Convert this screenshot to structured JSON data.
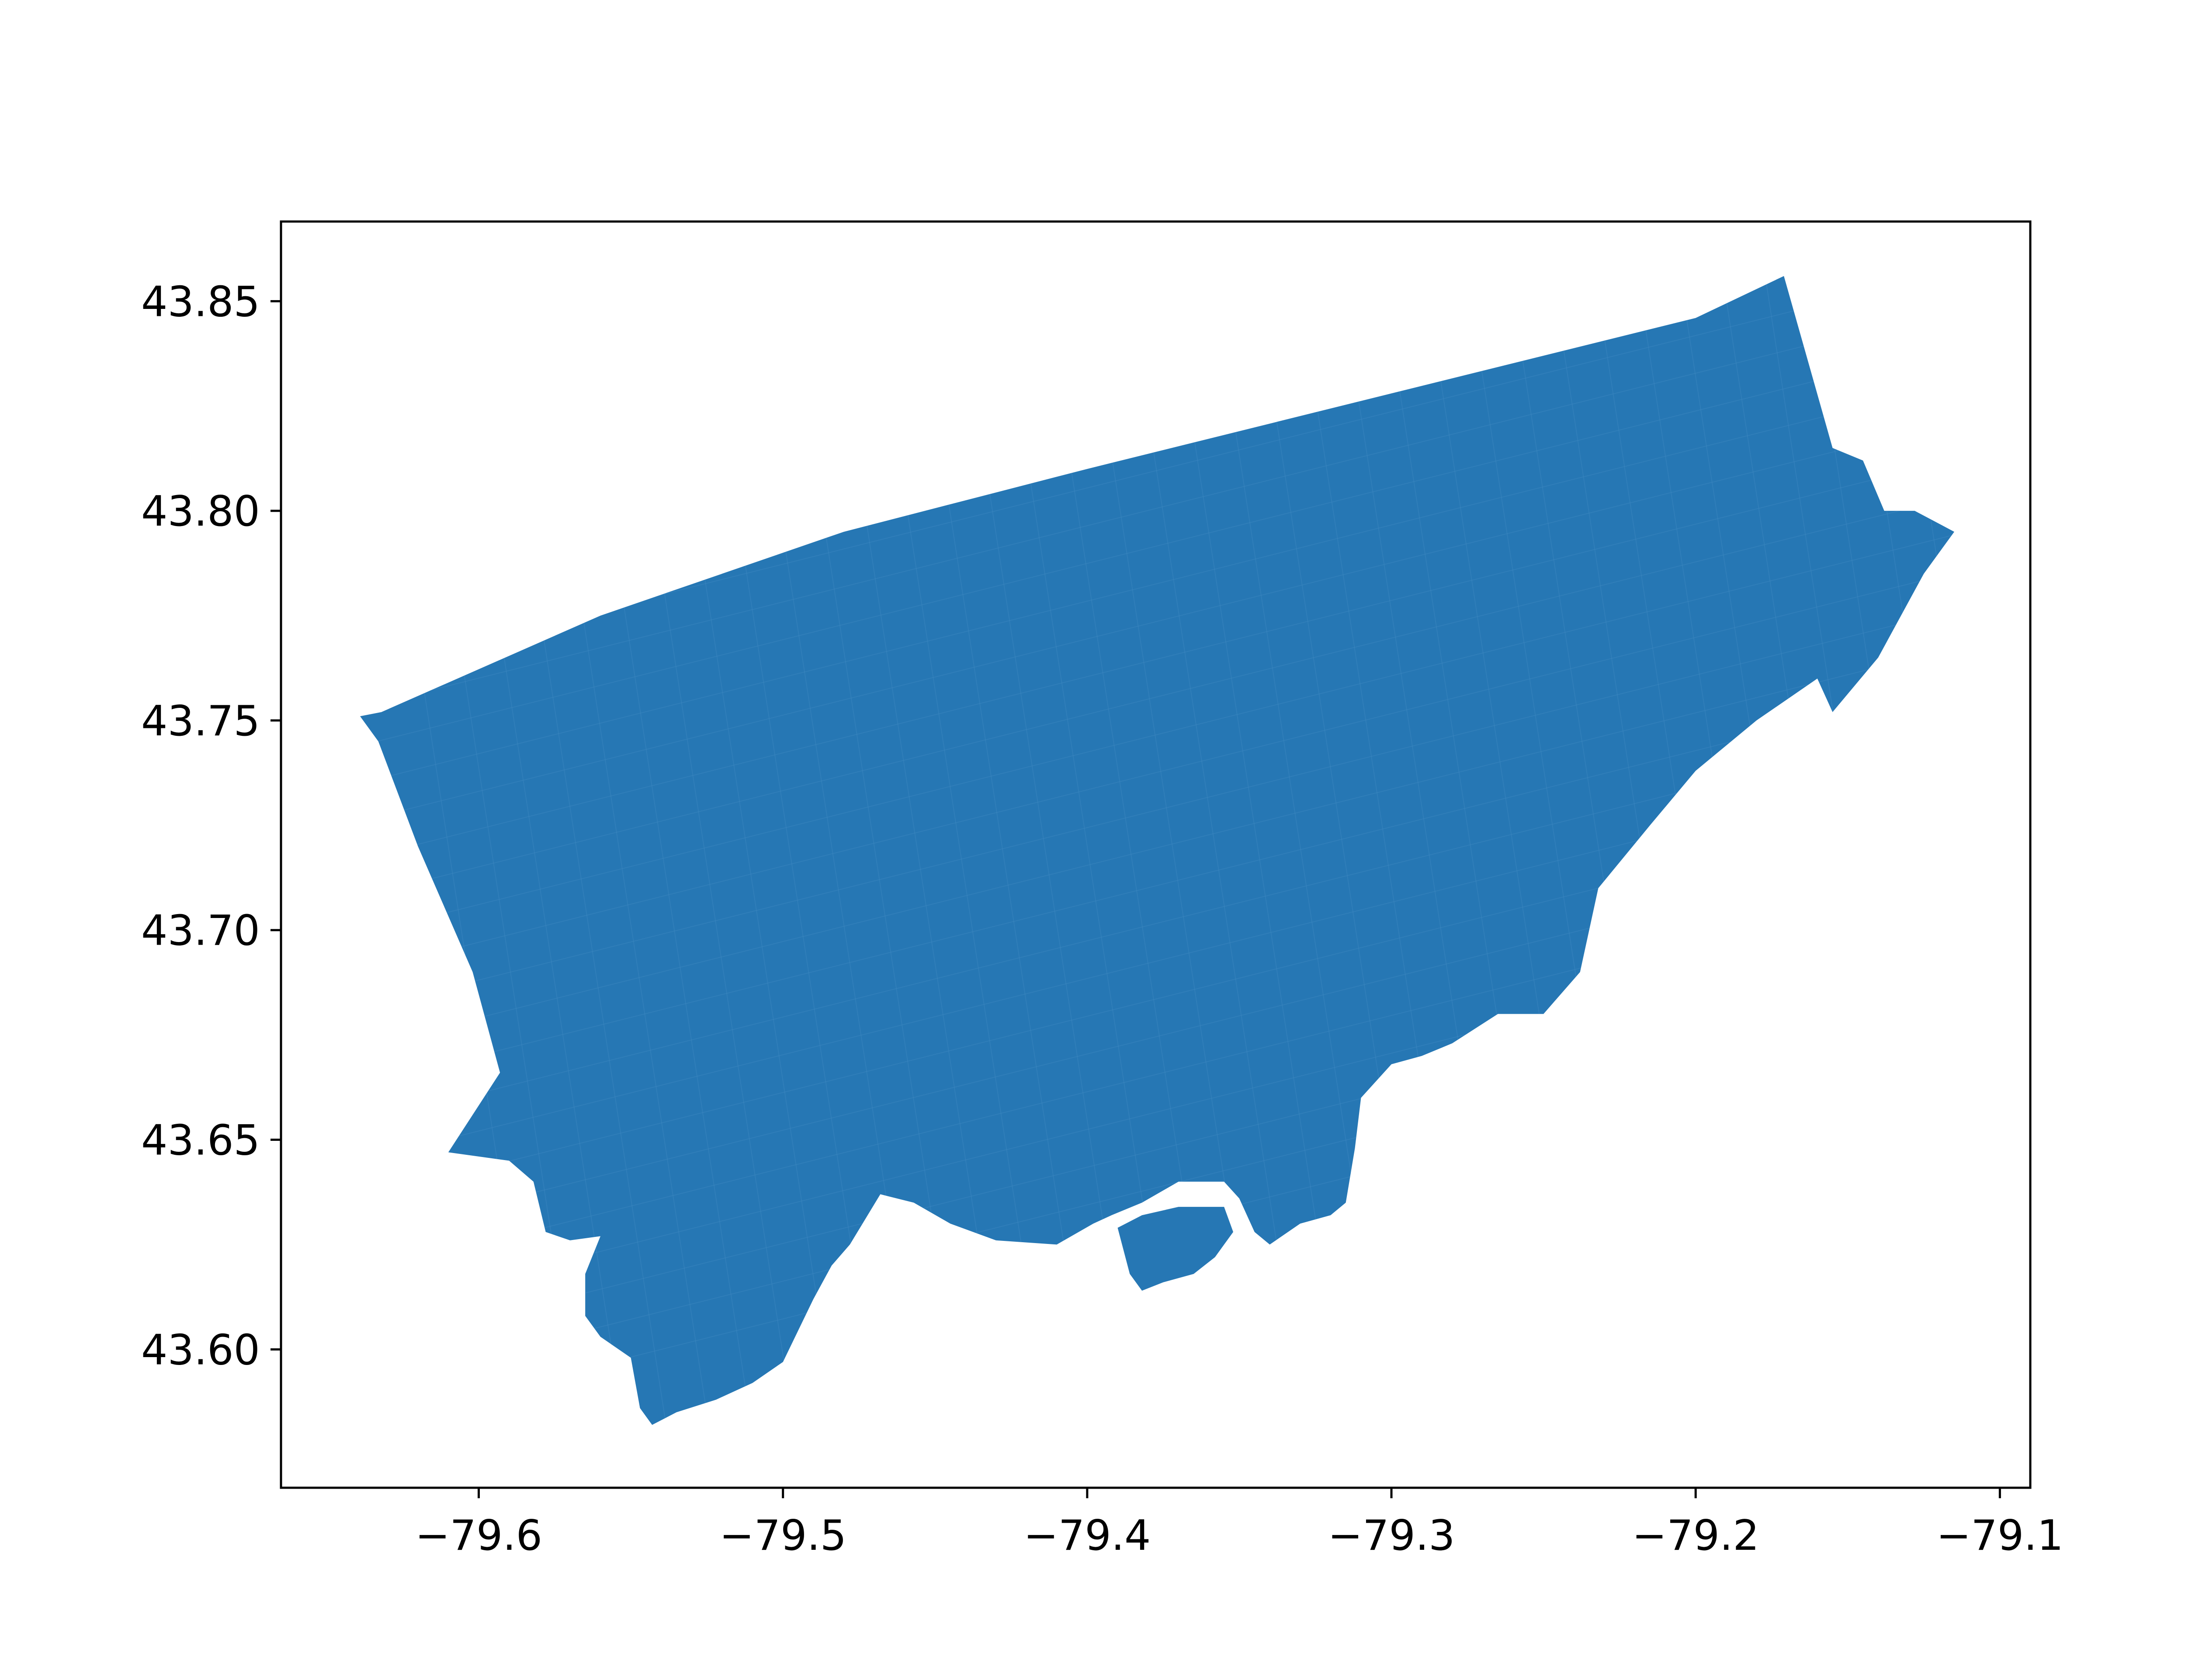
{
  "chart_data": {
    "type": "map",
    "title": "",
    "xlabel": "",
    "ylabel": "",
    "xlim": [
      -79.665,
      -79.09
    ],
    "ylim": [
      43.567,
      43.869
    ],
    "xticks": [
      {
        "value": -79.6,
        "label": "−79.6"
      },
      {
        "value": -79.5,
        "label": "−79.5"
      },
      {
        "value": -79.4,
        "label": "−79.4"
      },
      {
        "value": -79.3,
        "label": "−79.3"
      },
      {
        "value": -79.2,
        "label": "−79.2"
      },
      {
        "value": -79.1,
        "label": "−79.1"
      }
    ],
    "yticks": [
      {
        "value": 43.6,
        "label": "43.60"
      },
      {
        "value": 43.65,
        "label": "43.65"
      },
      {
        "value": 43.7,
        "label": "43.70"
      },
      {
        "value": 43.75,
        "label": "43.75"
      },
      {
        "value": 43.8,
        "label": "43.80"
      },
      {
        "value": 43.85,
        "label": "43.85"
      }
    ],
    "fill_color": "#2677b4",
    "line_color": "#3a86bf",
    "outline": [
      [
        -79.639,
        43.751
      ],
      [
        -79.632,
        43.752
      ],
      [
        -79.56,
        43.775
      ],
      [
        -79.48,
        43.795
      ],
      [
        -79.4,
        43.81
      ],
      [
        -79.3,
        43.828
      ],
      [
        -79.2,
        43.846
      ],
      [
        -79.171,
        43.856
      ],
      [
        -79.155,
        43.815
      ],
      [
        -79.145,
        43.812
      ],
      [
        -79.138,
        43.8
      ],
      [
        -79.128,
        43.8
      ],
      [
        -79.115,
        43.795
      ],
      [
        -79.125,
        43.785
      ],
      [
        -79.14,
        43.765
      ],
      [
        -79.155,
        43.752
      ],
      [
        -79.16,
        43.76
      ],
      [
        -79.18,
        43.75
      ],
      [
        -79.2,
        43.738
      ],
      [
        -79.215,
        43.725
      ],
      [
        -79.232,
        43.71
      ],
      [
        -79.238,
        43.69
      ],
      [
        -79.25,
        43.68
      ],
      [
        -79.265,
        43.68
      ],
      [
        -79.28,
        43.673
      ],
      [
        -79.29,
        43.67
      ],
      [
        -79.3,
        43.668
      ],
      [
        -79.31,
        43.66
      ],
      [
        -79.312,
        43.648
      ],
      [
        -79.315,
        43.635
      ],
      [
        -79.32,
        43.632
      ],
      [
        -79.33,
        43.63
      ],
      [
        -79.34,
        43.625
      ],
      [
        -79.345,
        43.628
      ],
      [
        -79.35,
        43.636
      ],
      [
        -79.355,
        43.64
      ],
      [
        -79.37,
        43.64
      ],
      [
        -79.382,
        43.635
      ],
      [
        -79.392,
        43.632
      ],
      [
        -79.398,
        43.63
      ],
      [
        -79.41,
        43.625
      ],
      [
        -79.43,
        43.626
      ],
      [
        -79.445,
        43.63
      ],
      [
        -79.457,
        43.635
      ],
      [
        -79.468,
        43.637
      ],
      [
        -79.478,
        43.625
      ],
      [
        -79.484,
        43.62
      ],
      [
        -79.49,
        43.612
      ],
      [
        -79.5,
        43.597
      ],
      [
        -79.51,
        43.592
      ],
      [
        -79.522,
        43.588
      ],
      [
        -79.535,
        43.585
      ],
      [
        -79.543,
        43.582
      ],
      [
        -79.547,
        43.586
      ],
      [
        -79.55,
        43.598
      ],
      [
        -79.56,
        43.603
      ],
      [
        -79.565,
        43.608
      ],
      [
        -79.565,
        43.618
      ],
      [
        -79.56,
        43.627
      ],
      [
        -79.57,
        43.626
      ],
      [
        -79.578,
        43.628
      ],
      [
        -79.582,
        43.64
      ],
      [
        -79.59,
        43.645
      ],
      [
        -79.61,
        43.647
      ],
      [
        -79.593,
        43.666
      ],
      [
        -79.602,
        43.69
      ],
      [
        -79.62,
        43.72
      ],
      [
        -79.633,
        43.745
      ]
    ],
    "islands": [
      [
        [
          -79.39,
          43.629
        ],
        [
          -79.382,
          43.632
        ],
        [
          -79.37,
          43.634
        ],
        [
          -79.355,
          43.634
        ],
        [
          -79.352,
          43.628
        ],
        [
          -79.358,
          43.622
        ],
        [
          -79.365,
          43.618
        ],
        [
          -79.375,
          43.616
        ],
        [
          -79.382,
          43.614
        ],
        [
          -79.386,
          43.618
        ]
      ]
    ]
  }
}
